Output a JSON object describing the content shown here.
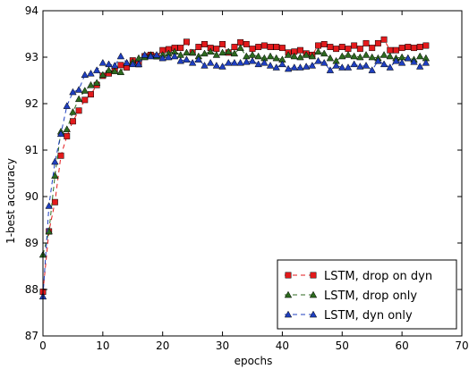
{
  "chart_data": {
    "type": "line",
    "title": "",
    "xlabel": "epochs",
    "ylabel": "1-best accuracy",
    "xlim": [
      0,
      70
    ],
    "ylim": [
      87,
      94
    ],
    "xticks": [
      0,
      10,
      20,
      30,
      40,
      50,
      60,
      70
    ],
    "yticks": [
      87,
      88,
      89,
      90,
      91,
      92,
      93,
      94
    ],
    "grid": false,
    "legend_position": "lower-right",
    "series": [
      {
        "name": "LSTM, drop on dyn",
        "color": "#e31a1c",
        "marker": "square",
        "linestyle": "dashed",
        "x": [
          0,
          1,
          2,
          3,
          4,
          5,
          6,
          7,
          8,
          9,
          10,
          11,
          12,
          13,
          14,
          15,
          16,
          17,
          18,
          19,
          20,
          21,
          22,
          23,
          24,
          25,
          26,
          27,
          28,
          29,
          30,
          31,
          32,
          33,
          34,
          35,
          36,
          37,
          38,
          39,
          40,
          41,
          42,
          43,
          44,
          45,
          46,
          47,
          48,
          49,
          50,
          51,
          52,
          53,
          54,
          55,
          56,
          57,
          58,
          59,
          60,
          61,
          62,
          63,
          64
        ],
        "y": [
          87.95,
          89.25,
          89.88,
          90.88,
          91.3,
          91.62,
          91.85,
          92.08,
          92.2,
          92.4,
          92.6,
          92.65,
          92.72,
          92.83,
          92.78,
          92.93,
          92.85,
          93.02,
          93.05,
          93.02,
          93.15,
          93.17,
          93.2,
          93.2,
          93.33,
          93.1,
          93.22,
          93.28,
          93.2,
          93.18,
          93.28,
          93.1,
          93.22,
          93.32,
          93.28,
          93.18,
          93.22,
          93.25,
          93.22,
          93.22,
          93.2,
          93.1,
          93.12,
          93.15,
          93.08,
          93.05,
          93.25,
          93.28,
          93.22,
          93.18,
          93.22,
          93.18,
          93.25,
          93.18,
          93.3,
          93.2,
          93.3,
          93.38,
          93.15,
          93.15,
          93.2,
          93.22,
          93.2,
          93.22,
          93.25
        ]
      },
      {
        "name": "LSTM, drop only",
        "color": "#2d6a1f",
        "marker": "triangle-up",
        "linestyle": "dashed",
        "x": [
          0,
          1,
          2,
          3,
          4,
          5,
          6,
          7,
          8,
          9,
          10,
          11,
          12,
          13,
          14,
          15,
          16,
          17,
          18,
          19,
          20,
          21,
          22,
          23,
          24,
          25,
          26,
          27,
          28,
          29,
          30,
          31,
          32,
          33,
          34,
          35,
          36,
          37,
          38,
          39,
          40,
          41,
          42,
          43,
          44,
          45,
          46,
          47,
          48,
          49,
          50,
          51,
          52,
          53,
          54,
          55,
          56,
          57,
          58,
          59,
          60,
          61,
          62,
          63,
          64
        ],
        "y": [
          88.75,
          89.25,
          90.45,
          91.4,
          91.45,
          91.82,
          92.1,
          92.28,
          92.4,
          92.45,
          92.62,
          92.72,
          92.7,
          92.68,
          92.88,
          92.9,
          92.98,
          93.0,
          93.05,
          93.02,
          93.05,
          93.08,
          93.12,
          93.05,
          93.1,
          93.1,
          93.02,
          93.08,
          93.12,
          93.05,
          93.1,
          93.12,
          93.08,
          93.2,
          93.02,
          93.05,
          93.02,
          92.98,
          93.02,
          92.98,
          92.95,
          93.05,
          93.02,
          93.0,
          93.05,
          93.02,
          93.12,
          93.08,
          92.98,
          92.92,
          93.02,
          93.05,
          93.02,
          93.0,
          93.05,
          93.0,
          92.98,
          93.05,
          93.02,
          92.98,
          93.0,
          92.98,
          92.95,
          93.02,
          92.98
        ]
      },
      {
        "name": "LSTM, dyn only",
        "color": "#1f3fbf",
        "marker": "triangle-up",
        "linestyle": "dashed",
        "x": [
          0,
          1,
          2,
          3,
          4,
          5,
          6,
          7,
          8,
          9,
          10,
          11,
          12,
          13,
          14,
          15,
          16,
          17,
          18,
          19,
          20,
          21,
          22,
          23,
          24,
          25,
          26,
          27,
          28,
          29,
          30,
          31,
          32,
          33,
          34,
          35,
          36,
          37,
          38,
          39,
          40,
          41,
          42,
          43,
          44,
          45,
          46,
          47,
          48,
          49,
          50,
          51,
          52,
          53,
          54,
          55,
          56,
          57,
          58,
          59,
          60,
          61,
          62,
          63,
          64
        ],
        "y": [
          87.85,
          89.8,
          90.75,
          91.35,
          91.95,
          92.25,
          92.3,
          92.62,
          92.65,
          92.72,
          92.88,
          92.85,
          92.82,
          93.02,
          92.88,
          92.85,
          92.85,
          93.05,
          93.02,
          93.05,
          92.98,
          93.0,
          93.02,
          92.92,
          92.95,
          92.88,
          92.95,
          92.82,
          92.88,
          92.82,
          92.8,
          92.88,
          92.88,
          92.88,
          92.9,
          92.92,
          92.85,
          92.88,
          92.82,
          92.78,
          92.85,
          92.75,
          92.78,
          92.78,
          92.8,
          92.82,
          92.92,
          92.88,
          92.72,
          92.82,
          92.78,
          92.78,
          92.85,
          92.8,
          92.82,
          92.72,
          92.92,
          92.85,
          92.78,
          92.92,
          92.88,
          92.98,
          92.9,
          92.8,
          92.88
        ]
      }
    ]
  }
}
